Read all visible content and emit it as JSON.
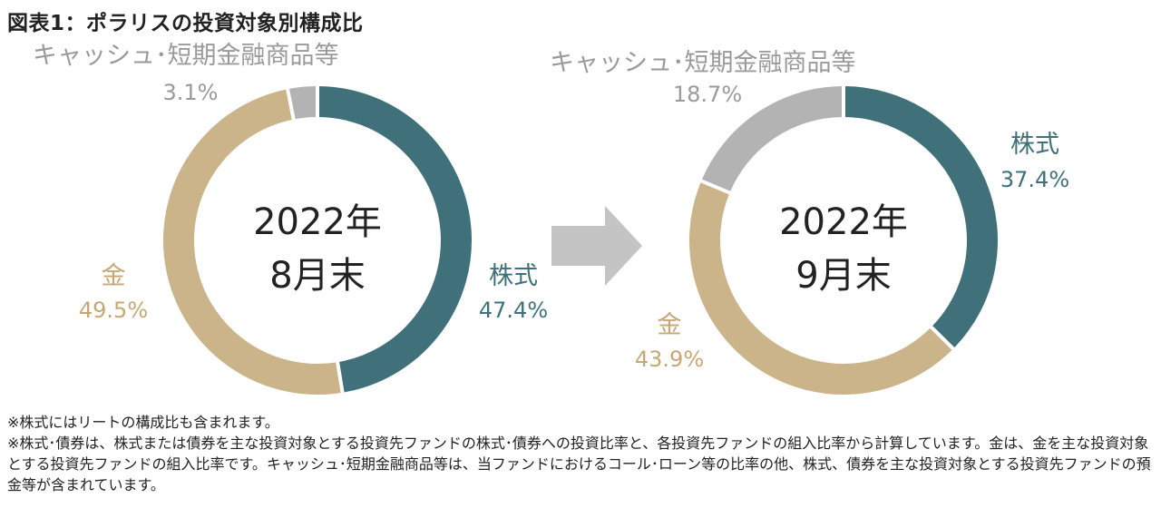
{
  "title": "図表1：ポラリスの投資対象別構成比",
  "colors": {
    "stocks": "#40717a",
    "gold": "#cbb48a",
    "cash": "#b3b3b3"
  },
  "chart_data": [
    {
      "type": "pie",
      "center_label": [
        "2022年",
        "8月末"
      ],
      "categories": [
        "株式",
        "金",
        "キャッシュ･短期金融商品等"
      ],
      "values": [
        47.4,
        49.5,
        3.1
      ],
      "value_labels": [
        "47.4%",
        "49.5%",
        "3.1%"
      ]
    },
    {
      "type": "pie",
      "center_label": [
        "2022年",
        "9月末"
      ],
      "categories": [
        "株式",
        "金",
        "キャッシュ･短期金融商品等"
      ],
      "values": [
        37.4,
        43.9,
        18.7
      ],
      "value_labels": [
        "37.4%",
        "43.9%",
        "18.7%"
      ]
    }
  ],
  "notes": [
    "※株式にはリートの構成比も含まれます。",
    "※株式･債券は、株式または債券を主な投資対象とする投資先ファンドの株式･債券への投資比率と、各投資先ファンドの組入比率から計算しています。金は、金を主な投資対象とする投資先ファンドの組入比率です。キャッシュ･短期金融商品等は、当ファンドにおけるコール･ローン等の比率の他、株式、債券を主な投資対象とする投資先ファンドの預金等が含まれています。"
  ]
}
